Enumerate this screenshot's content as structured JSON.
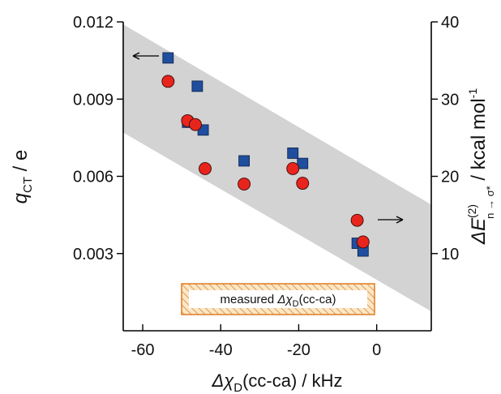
{
  "chart_data": {
    "type": "scatter",
    "xlabel": {
      "prefix": "Δχ",
      "sub": "D",
      "suffix": "(cc-ca) / kHz"
    },
    "ylabel_left": {
      "main": "q",
      "sub": "CT",
      "suffix": " / e"
    },
    "ylabel_right": {
      "main": "ΔE",
      "sup": "(2)",
      "sub": "n → σ*",
      "suffix": " / kcal mol",
      "sup2": "-1"
    },
    "xlim": [
      -65,
      14
    ],
    "ylim_left": [
      0,
      0.012
    ],
    "ylim_right": [
      0,
      40
    ],
    "x_ticks": [
      -60,
      -40,
      -20,
      0
    ],
    "x_tick_labels": [
      "-60",
      "-40",
      "-20",
      "0"
    ],
    "y_left_ticks": [
      0.003,
      0.006,
      0.009,
      0.012
    ],
    "y_left_tick_labels": [
      "0.003",
      "0.006",
      "0.009",
      "0.012"
    ],
    "y_right_ticks": [
      10,
      20,
      30,
      40
    ],
    "y_right_tick_labels": [
      "10",
      "20",
      "30",
      "40"
    ],
    "band": {
      "x": [
        -65,
        14
      ],
      "upper_left_axis": [
        0.0119,
        0.0049
      ],
      "lower_left_axis": [
        0.0077,
        0.00075
      ]
    },
    "inset_label": {
      "prefix": "measured ",
      "chi": "Δχ",
      "sub": "D",
      "suffix": "(cc-ca)"
    },
    "colors": {
      "band": "#d3d3d3",
      "square": "#1f4e9e",
      "circle": "#e8251d",
      "inset_fill": "#fbe8c9",
      "inset_stripe": "#e9a25a",
      "inset_border": "#e07a22"
    },
    "series": [
      {
        "marker": "square",
        "axis": "left",
        "x": [
          -53.5,
          -46,
          -48.5,
          -44.5,
          -34,
          -21.5,
          -19,
          -5,
          -3.5
        ],
        "y": [
          0.0106,
          0.0095,
          0.0081,
          0.0078,
          0.0066,
          0.0069,
          0.0065,
          0.0034,
          0.0031
        ]
      },
      {
        "marker": "circle",
        "axis": "right",
        "x": [
          -53.5,
          -48.5,
          -46.5,
          -44,
          -34,
          -21.5,
          -19,
          -5,
          -3.5
        ],
        "y": [
          32.3,
          27.2,
          26.7,
          21.0,
          19.0,
          21.0,
          19.1,
          14.3,
          11.5
        ]
      }
    ]
  }
}
